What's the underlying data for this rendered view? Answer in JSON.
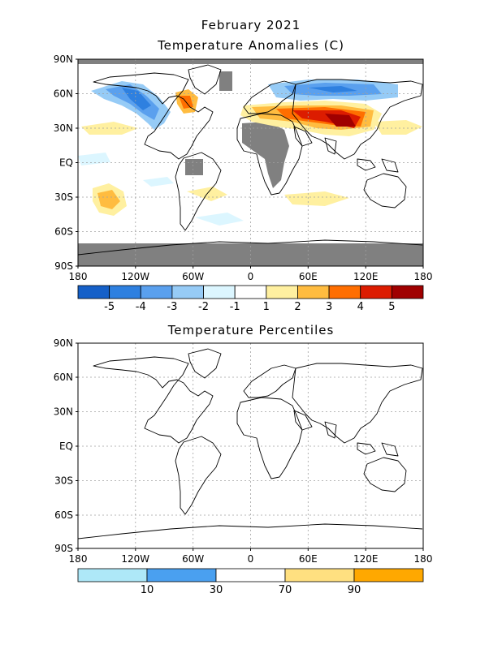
{
  "header": {
    "month_year": "February 2021",
    "map1_title": "Temperature Anomalies (C)",
    "map2_title": "Temperature Percentiles"
  },
  "axes": {
    "lat_labels": [
      "90N",
      "60N",
      "30N",
      "EQ",
      "30S",
      "60S",
      "90S"
    ],
    "lon_labels": [
      "180",
      "120W",
      "60W",
      "0",
      "60E",
      "120E",
      "180"
    ]
  },
  "anomaly_colorbar": {
    "colors": [
      "#1560c8",
      "#2e80e0",
      "#5aa0ee",
      "#96cbf6",
      "#dcf6ff",
      "#ffffff",
      "#fff0a0",
      "#ffbc40",
      "#ff6e00",
      "#dc1c00",
      "#a00000"
    ],
    "labels": [
      "-5",
      "-4",
      "-3",
      "-2",
      "-1",
      "1",
      "2",
      "3",
      "4",
      "5"
    ]
  },
  "percentile_colorbar": {
    "colors": [
      "#aee8f8",
      "#4aa0f0",
      "#ffffff",
      "#ffe080",
      "#ffa800"
    ],
    "labels": [
      "10",
      "30",
      "70",
      "90"
    ]
  },
  "palette": {
    "missing": "#808080",
    "grid": "#a0a0a0"
  }
}
